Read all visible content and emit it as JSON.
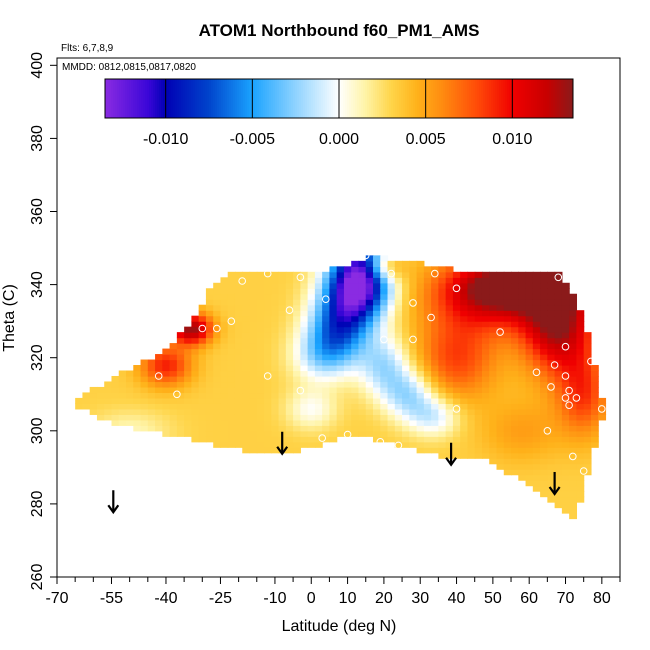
{
  "chart_data": {
    "type": "heatmap",
    "title": "ATOM1 Northbound f60_PM1_AMS",
    "flights_label": "Flts: 6,7,8,9",
    "dates_label": "MMDD: 0812,0815,0817,0820",
    "xlabel": "Latitude (deg N)",
    "ylabel": "Theta (C)",
    "xlim": [
      -70,
      85
    ],
    "ylim": [
      260,
      402
    ],
    "x_ticks": [
      -70,
      -55,
      -40,
      -25,
      -10,
      0,
      10,
      20,
      30,
      40,
      50,
      60,
      70,
      80
    ],
    "x_tick_labels": [
      "-70",
      "-55",
      "-40",
      "-25",
      "-10",
      "0",
      "10",
      "20",
      "30",
      "40",
      "50",
      "60",
      "70",
      "80"
    ],
    "x_minor_ticks": [
      -65,
      -60,
      -50,
      -45,
      -35,
      -30,
      -20,
      -15,
      -5,
      5,
      15,
      25,
      35,
      45,
      55,
      65,
      75,
      85
    ],
    "y_ticks": [
      260,
      280,
      300,
      320,
      340,
      360,
      380,
      400
    ],
    "y_tick_labels": [
      "260",
      "280",
      "300",
      "320",
      "340",
      "360",
      "380",
      "400"
    ],
    "colorbar": {
      "range": [
        -0.0135,
        0.0135
      ],
      "ticks": [
        -0.01,
        -0.005,
        0.0,
        0.005,
        0.01
      ],
      "tick_labels": [
        "-0.010",
        "-0.005",
        "0.000",
        "0.005",
        "0.010"
      ],
      "boundaries": [
        -0.01,
        -0.005,
        0.0,
        0.005,
        0.01
      ],
      "stops": [
        {
          "v": -0.0135,
          "color": "#8a2be2"
        },
        {
          "v": -0.011,
          "color": "#3a06d8"
        },
        {
          "v": -0.01,
          "color": "#0000b4"
        },
        {
          "v": -0.0075,
          "color": "#0044cc"
        },
        {
          "v": -0.005,
          "color": "#1aa3ff"
        },
        {
          "v": -0.0025,
          "color": "#8fd3ff"
        },
        {
          "v": 0.0,
          "color": "#ffffff"
        },
        {
          "v": 0.0015,
          "color": "#fff4a8"
        },
        {
          "v": 0.003,
          "color": "#ffd54a"
        },
        {
          "v": 0.0045,
          "color": "#ffb21a"
        },
        {
          "v": 0.006,
          "color": "#ff8a10"
        },
        {
          "v": 0.008,
          "color": "#ff4a08"
        },
        {
          "v": 0.01,
          "color": "#f00000"
        },
        {
          "v": 0.012,
          "color": "#c80000"
        },
        {
          "v": 0.0135,
          "color": "#8b1a1a"
        }
      ]
    },
    "arrow_latitudes": [
      -54.5,
      -8,
      38.5,
      67
    ],
    "arrow_thetas": [
      281,
      297,
      294,
      286
    ],
    "field": {
      "x_range": [
        -65,
        80
      ],
      "y_range": [
        276,
        348
      ],
      "upper_boundary": [
        [
          -65,
          309
        ],
        [
          -40,
          322
        ],
        [
          -32,
          331
        ],
        [
          -28,
          339
        ],
        [
          -22,
          343.5
        ],
        [
          5,
          344
        ],
        [
          12,
          346
        ],
        [
          17,
          348
        ],
        [
          22,
          347
        ],
        [
          30,
          346
        ],
        [
          45,
          343
        ],
        [
          68,
          343
        ],
        [
          72,
          338
        ],
        [
          76,
          327
        ],
        [
          80,
          309
        ]
      ],
      "lower_boundary": [
        [
          -65,
          307
        ],
        [
          -55,
          302
        ],
        [
          -45,
          300
        ],
        [
          -35,
          298
        ],
        [
          -20,
          295
        ],
        [
          -8,
          293.5
        ],
        [
          5,
          297
        ],
        [
          12,
          299
        ],
        [
          25,
          296
        ],
        [
          32,
          294
        ],
        [
          40,
          292
        ],
        [
          48,
          292
        ],
        [
          57,
          287
        ],
        [
          66,
          281
        ],
        [
          71,
          277
        ],
        [
          72,
          276
        ],
        [
          74,
          280
        ],
        [
          77,
          291
        ],
        [
          80,
          303
        ]
      ],
      "centers": [
        {
          "lat": 14,
          "theta": 344,
          "amp": -0.014,
          "sx": 6,
          "sy": 7
        },
        {
          "lat": 11,
          "theta": 336,
          "amp": -0.009,
          "sx": 6,
          "sy": 6
        },
        {
          "lat": 7,
          "theta": 327,
          "amp": -0.008,
          "sx": 6,
          "sy": 6
        },
        {
          "lat": 3,
          "theta": 320,
          "amp": -0.004,
          "sx": 6,
          "sy": 5
        },
        {
          "lat": 20,
          "theta": 318,
          "amp": -0.005,
          "sx": 5,
          "sy": 6
        },
        {
          "lat": 27,
          "theta": 310,
          "amp": -0.005,
          "sx": 5,
          "sy": 5
        },
        {
          "lat": 34,
          "theta": 304,
          "amp": -0.004,
          "sx": 5,
          "sy": 4
        },
        {
          "lat": 0,
          "theta": 306,
          "amp": -0.003,
          "sx": 5,
          "sy": 4
        },
        {
          "lat": -50,
          "theta": 300,
          "amp": -0.002,
          "sx": 8,
          "sy": 4
        },
        {
          "lat": 50,
          "theta": 338,
          "amp": 0.009,
          "sx": 12,
          "sy": 7
        },
        {
          "lat": 68,
          "theta": 330,
          "amp": 0.01,
          "sx": 7,
          "sy": 10
        },
        {
          "lat": 60,
          "theta": 340,
          "amp": 0.007,
          "sx": 10,
          "sy": 4
        },
        {
          "lat": 75,
          "theta": 310,
          "amp": 0.005,
          "sx": 5,
          "sy": 8
        },
        {
          "lat": 40,
          "theta": 320,
          "amp": 0.005,
          "sx": 8,
          "sy": 8
        },
        {
          "lat": -33,
          "theta": 328,
          "amp": 0.01,
          "sx": 4,
          "sy": 3
        },
        {
          "lat": -40,
          "theta": 318,
          "amp": 0.006,
          "sx": 5,
          "sy": 4
        },
        {
          "lat": 20,
          "theta": 345,
          "amp": 0.006,
          "sx": 4,
          "sy": 3
        },
        {
          "lat": 58,
          "theta": 300,
          "amp": 0.002,
          "sx": 8,
          "sy": 6
        }
      ],
      "base_value": 0.0032,
      "cell_dx": 2,
      "cell_dy": 1.5
    },
    "observations": [
      [
        -42,
        315
      ],
      [
        -37,
        310
      ],
      [
        -30,
        328
      ],
      [
        -26,
        328
      ],
      [
        -22,
        330
      ],
      [
        -19,
        341
      ],
      [
        -12,
        343
      ],
      [
        -6,
        333
      ],
      [
        -3,
        342
      ],
      [
        -12,
        315
      ],
      [
        -3,
        311
      ],
      [
        4,
        336
      ],
      [
        4,
        345
      ],
      [
        3,
        298
      ],
      [
        10,
        299
      ],
      [
        15,
        348
      ],
      [
        19,
        297
      ],
      [
        22,
        343
      ],
      [
        24,
        296
      ],
      [
        28,
        335
      ],
      [
        33,
        331
      ],
      [
        34,
        343
      ],
      [
        40,
        339
      ],
      [
        40,
        306
      ],
      [
        52,
        327
      ],
      [
        62,
        316
      ],
      [
        65,
        300
      ],
      [
        67,
        318
      ],
      [
        66,
        312
      ],
      [
        68,
        342
      ],
      [
        70,
        323
      ],
      [
        70,
        315
      ],
      [
        71,
        311
      ],
      [
        71,
        307
      ],
      [
        70,
        309
      ],
      [
        73,
        309
      ],
      [
        72,
        293
      ],
      [
        75,
        289
      ],
      [
        77,
        319
      ],
      [
        80,
        306
      ],
      [
        28,
        325
      ],
      [
        20,
        325
      ]
    ]
  }
}
